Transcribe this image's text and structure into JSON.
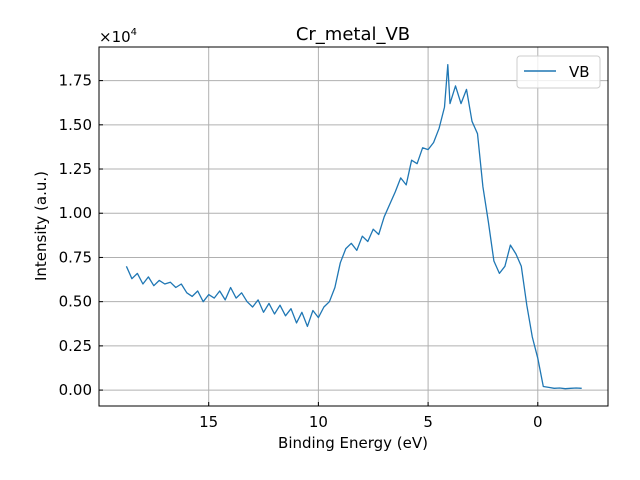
{
  "chart_data": {
    "type": "line",
    "title": "Cr_metal_VB",
    "xlabel": "Binding Energy (eV)",
    "ylabel": "Intensity (a.u.)",
    "y_offset_text": "×10",
    "y_offset_exp": "4",
    "y_multiplier": 10000,
    "xlim": [
      20.0,
      -3.2
    ],
    "ylim": [
      -0.09,
      1.94
    ],
    "x_inverted": true,
    "grid": true,
    "legend_position": "top-right",
    "x_ticks": [
      15,
      10,
      5,
      0
    ],
    "x_tick_labels": [
      "15",
      "10",
      "5",
      "0"
    ],
    "y_ticks": [
      0,
      0.25,
      0.5,
      0.75,
      1.0,
      1.25,
      1.5,
      1.75
    ],
    "y_tick_labels": [
      "0.00",
      "0.25",
      "0.50",
      "0.75",
      "1.00",
      "1.25",
      "1.50",
      "1.75"
    ],
    "series": [
      {
        "name": "VB",
        "color": "#1f77b4",
        "x": [
          18.75,
          18.5,
          18.25,
          18.0,
          17.75,
          17.5,
          17.25,
          17.0,
          16.75,
          16.5,
          16.25,
          16.0,
          15.75,
          15.5,
          15.25,
          15.0,
          14.75,
          14.5,
          14.25,
          14.0,
          13.75,
          13.5,
          13.25,
          13.0,
          12.75,
          12.5,
          12.25,
          12.0,
          11.75,
          11.5,
          11.25,
          11.0,
          10.75,
          10.5,
          10.25,
          10.0,
          9.75,
          9.5,
          9.25,
          9.0,
          8.75,
          8.5,
          8.25,
          8.0,
          7.75,
          7.5,
          7.25,
          7.0,
          6.75,
          6.5,
          6.25,
          6.0,
          5.75,
          5.5,
          5.25,
          5.0,
          4.75,
          4.5,
          4.25,
          4.1,
          4.0,
          3.75,
          3.5,
          3.25,
          3.0,
          2.75,
          2.5,
          2.25,
          2.0,
          1.75,
          1.5,
          1.25,
          1.0,
          0.75,
          0.5,
          0.25,
          0.0,
          -0.25,
          -0.5,
          -0.75,
          -1.0,
          -1.25,
          -1.5,
          -1.75,
          -2.0
        ],
        "y": [
          0.7,
          0.63,
          0.66,
          0.6,
          0.64,
          0.59,
          0.62,
          0.6,
          0.61,
          0.58,
          0.6,
          0.55,
          0.53,
          0.56,
          0.5,
          0.54,
          0.52,
          0.56,
          0.51,
          0.58,
          0.52,
          0.55,
          0.5,
          0.47,
          0.51,
          0.44,
          0.49,
          0.43,
          0.48,
          0.42,
          0.46,
          0.38,
          0.44,
          0.36,
          0.45,
          0.41,
          0.47,
          0.5,
          0.58,
          0.72,
          0.8,
          0.83,
          0.79,
          0.87,
          0.84,
          0.91,
          0.88,
          0.98,
          1.05,
          1.12,
          1.2,
          1.16,
          1.3,
          1.28,
          1.37,
          1.36,
          1.4,
          1.48,
          1.6,
          1.84,
          1.62,
          1.72,
          1.62,
          1.7,
          1.52,
          1.45,
          1.15,
          0.95,
          0.73,
          0.66,
          0.7,
          0.82,
          0.77,
          0.7,
          0.48,
          0.3,
          0.18,
          0.02,
          0.015,
          0.01,
          0.012,
          0.008,
          0.01,
          0.012,
          0.01
        ]
      }
    ]
  }
}
